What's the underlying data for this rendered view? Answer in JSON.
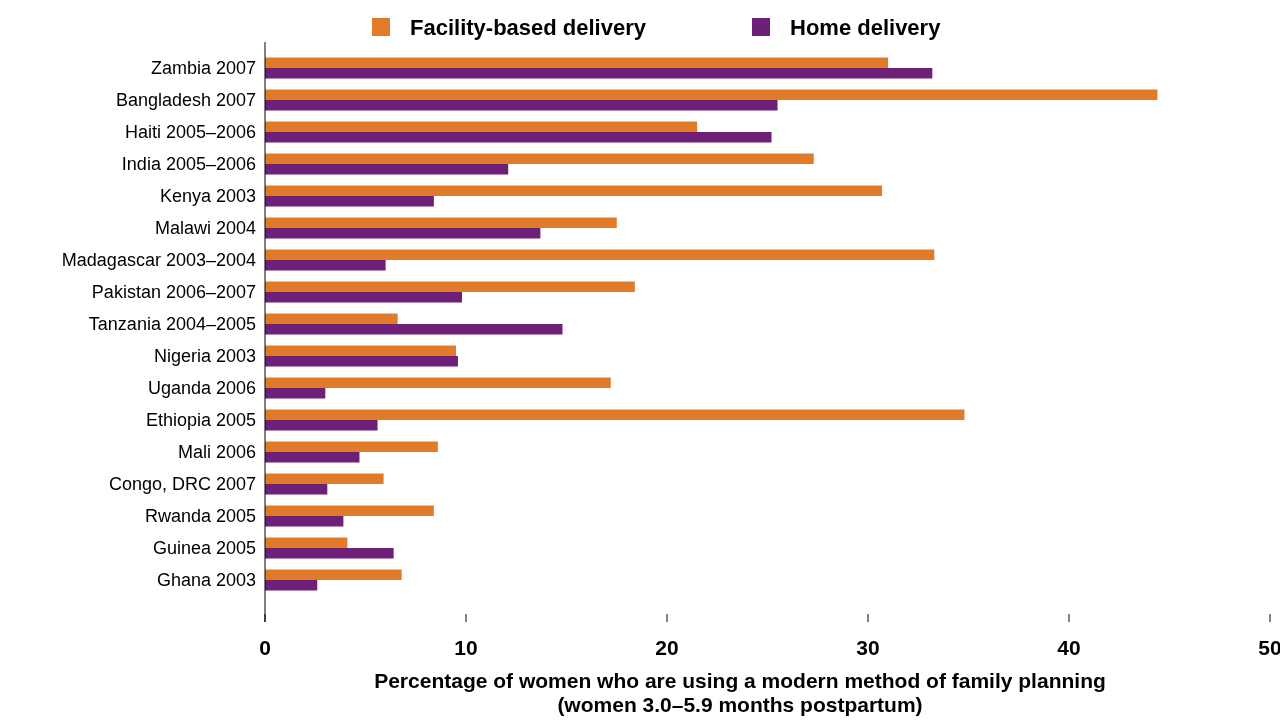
{
  "chart_data": {
    "type": "bar",
    "orientation": "horizontal",
    "xlabel": "Percentage of women who are using a modern method of family planning\n(women 3.0–5.9 months postpartum)",
    "categories": [
      "Zambia 2007",
      "Bangladesh 2007",
      "Haiti 2005–2006",
      "India 2005–2006",
      "Kenya 2003",
      "Malawi 2004",
      "Madagascar 2003–2004",
      "Pakistan 2006–2007",
      "Tanzania 2004–2005",
      "Nigeria 2003",
      "Uganda 2006",
      "Ethiopia 2005",
      "Mali 2006",
      "Congo, DRC 2007",
      "Rwanda 2005",
      "Guinea 2005",
      "Ghana 2003"
    ],
    "series": [
      {
        "name": "Facility-based delivery",
        "color": "#e07b2a",
        "values": [
          31.0,
          44.4,
          21.5,
          27.3,
          30.7,
          17.5,
          33.3,
          18.4,
          6.6,
          9.5,
          17.2,
          34.8,
          8.6,
          5.9,
          8.4,
          4.1,
          6.8
        ]
      },
      {
        "name": "Home delivery",
        "color": "#6e2079",
        "values": [
          33.2,
          25.5,
          25.2,
          12.1,
          8.4,
          13.7,
          6.0,
          9.8,
          14.8,
          9.6,
          3.0,
          5.6,
          4.7,
          3.1,
          3.9,
          6.4,
          2.6
        ]
      }
    ],
    "xlim": [
      0,
      50
    ],
    "xticks": [
      0,
      10,
      20,
      30,
      40,
      50
    ],
    "grid": false,
    "legend": "top"
  }
}
